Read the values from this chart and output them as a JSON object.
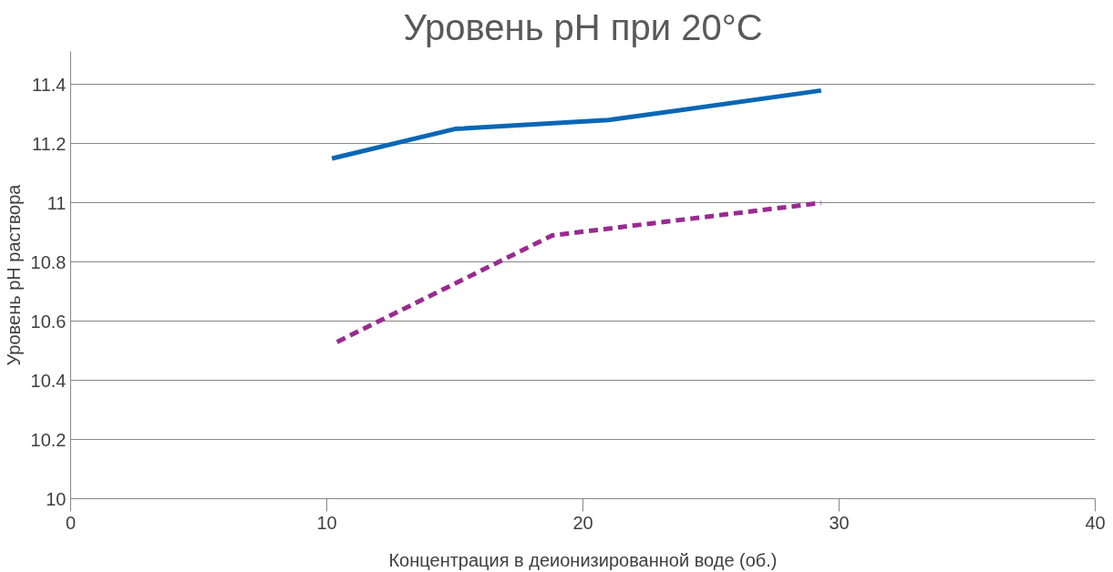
{
  "chart_data": {
    "type": "line",
    "title": "Уровень pH при 20°C",
    "xlabel": "Концентрация в деионизированной воде (об.)",
    "ylabel": "Уровень pH раствора",
    "series": [
      {
        "color": "#0a67b5",
        "line_style": "solid",
        "x": [
          10.2,
          15,
          21,
          29.3
        ],
        "values": [
          11.15,
          11.25,
          11.28,
          11.38
        ]
      },
      {
        "color": "#9a2a8f",
        "line_style": "dashed",
        "x": [
          10.4,
          18.8,
          29.3
        ],
        "values": [
          10.53,
          10.89,
          11.0
        ]
      }
    ],
    "xlim": [
      0,
      40
    ],
    "xticks": [
      0,
      10,
      20,
      30,
      40
    ],
    "ylim": [
      10,
      11.4
    ],
    "yticks": [
      10,
      10.2,
      10.4,
      10.6,
      10.8,
      11,
      11.2,
      11.4
    ],
    "grid": "y"
  }
}
